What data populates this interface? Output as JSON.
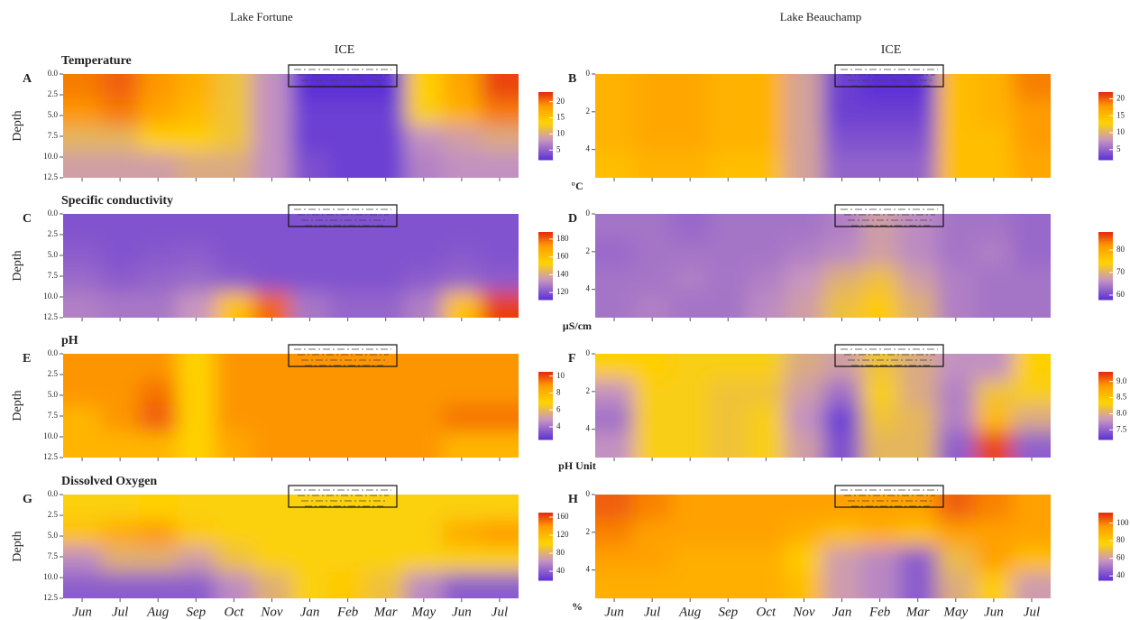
{
  "lakes": [
    "Lake Fortune",
    "Lake Beauchamp"
  ],
  "ice_label": "ICE",
  "y_label": "Depth",
  "months": [
    "Jun",
    "Jul",
    "Aug",
    "Sep",
    "Oct",
    "Nov",
    "Jan",
    "Feb",
    "Mar",
    "May",
    "Jun",
    "Jul"
  ],
  "panels": [
    {
      "letter": "A",
      "title": "Temperature",
      "clim": [
        2,
        23
      ],
      "cticks": [
        5,
        10,
        15,
        20
      ],
      "ylim": [
        0,
        12.5
      ],
      "yticks": [
        {
          "value": 0,
          "label": "0.0"
        },
        2.5,
        {
          "value": 5,
          "label": "5.0"
        },
        7.5,
        {
          "value": 10,
          "label": "10.0"
        },
        12.5
      ],
      "values": [
        [
          20,
          21,
          19,
          17,
          12,
          8,
          2,
          1,
          1,
          14,
          18,
          22
        ],
        [
          19,
          20,
          18,
          16,
          12,
          8,
          3,
          3,
          3,
          13,
          17,
          20
        ],
        [
          11,
          11,
          14,
          14,
          12,
          8,
          3,
          3,
          3,
          8,
          9,
          10
        ],
        [
          9,
          9,
          9,
          10,
          10,
          8,
          4,
          3,
          3,
          7,
          8,
          8
        ]
      ]
    },
    {
      "letter": "B",
      "unit": "°C",
      "clim": [
        2,
        22
      ],
      "cticks": [
        5,
        10,
        15,
        20
      ],
      "ylim": [
        0,
        5.5
      ],
      "yticks": [
        0,
        2,
        4
      ],
      "values": [
        [
          16,
          17,
          17,
          16,
          16,
          9,
          3,
          2,
          2,
          15,
          16,
          19
        ],
        [
          16,
          17,
          17,
          16,
          16,
          9,
          3,
          3,
          3,
          15,
          16,
          18
        ],
        [
          16,
          17,
          17,
          16,
          16,
          9,
          4,
          4,
          4,
          15,
          15,
          18
        ],
        [
          15,
          16,
          16,
          15,
          15,
          9,
          5,
          5,
          5,
          15,
          15,
          17
        ]
      ]
    },
    {
      "letter": "C",
      "title": "Specific conductivity",
      "clim": [
        112,
        188
      ],
      "cticks": [
        120,
        140,
        160,
        180
      ],
      "ylim": [
        0,
        12.5
      ],
      "yticks": [
        {
          "value": 0,
          "label": "0.0"
        },
        2.5,
        {
          "value": 5,
          "label": "5.0"
        },
        7.5,
        {
          "value": 10,
          "label": "10.0"
        },
        12.5
      ],
      "values": [
        [
          120,
          120,
          120,
          120,
          120,
          120,
          120,
          120,
          120,
          120,
          120,
          120
        ],
        [
          122,
          120,
          121,
          122,
          120,
          120,
          120,
          120,
          120,
          120,
          121,
          120
        ],
        [
          125,
          122,
          124,
          125,
          122,
          120,
          120,
          120,
          120,
          122,
          124,
          122
        ],
        [
          130,
          128,
          128,
          135,
          160,
          180,
          128,
          124,
          124,
          130,
          160,
          185
        ]
      ]
    },
    {
      "letter": "D",
      "unit": "μS/cm",
      "clim": [
        58,
        88
      ],
      "cticks": [
        60,
        70,
        80
      ],
      "ylim": [
        0,
        5.5
      ],
      "yticks": [
        0,
        2,
        4
      ],
      "values": [
        [
          64,
          64,
          63,
          64,
          64,
          64,
          65,
          68,
          66,
          64,
          64,
          63
        ],
        [
          63,
          64,
          64,
          64,
          64,
          65,
          66,
          68,
          66,
          64,
          65,
          63
        ],
        [
          64,
          64,
          65,
          64,
          65,
          67,
          70,
          72,
          68,
          65,
          64,
          64
        ],
        [
          64,
          65,
          64,
          64,
          66,
          68,
          72,
          76,
          70,
          65,
          64,
          64
        ]
      ]
    },
    {
      "letter": "E",
      "title": "pH",
      "clim": [
        2.5,
        10.5
      ],
      "cticks": [
        4,
        6,
        8,
        10
      ],
      "ylim": [
        0,
        12.5
      ],
      "yticks": [
        {
          "value": 0,
          "label": "0.0"
        },
        2.5,
        {
          "value": 5,
          "label": "5.0"
        },
        7.5,
        {
          "value": 10,
          "label": "10.0"
        },
        12.5
      ],
      "values": [
        [
          9,
          9,
          9,
          7,
          9,
          9,
          9,
          9,
          9,
          9,
          9,
          9
        ],
        [
          9,
          9,
          9.5,
          7,
          9,
          9,
          9,
          9,
          9,
          9,
          9,
          9
        ],
        [
          8,
          9,
          9.8,
          7,
          9,
          9,
          9,
          9,
          9,
          9,
          9.5,
          9.5
        ],
        [
          8,
          8,
          8,
          7,
          8.5,
          9,
          9,
          9,
          9,
          9,
          8,
          8
        ]
      ]
    },
    {
      "letter": "F",
      "unit": "pH Unit",
      "clim": [
        7.2,
        9.3
      ],
      "cticks": [
        7.5,
        {
          "value": 8,
          "label": "8.0"
        },
        8.5,
        {
          "value": 9,
          "label": "9.0"
        }
      ],
      "ylim": [
        0,
        5.5
      ],
      "yticks": [
        0,
        2,
        4
      ],
      "values": [
        [
          8.4,
          8.4,
          8.3,
          8.3,
          8.3,
          8.0,
          7.9,
          8.2,
          8.0,
          7.8,
          7.8,
          8.4
        ],
        [
          7.8,
          8.3,
          8.3,
          8.2,
          8.2,
          7.9,
          7.6,
          8.3,
          8.0,
          7.7,
          8.2,
          8.3
        ],
        [
          7.6,
          8.3,
          8.3,
          8.2,
          8.3,
          7.8,
          7.3,
          8.2,
          8.1,
          7.7,
          8.6,
          8.0
        ],
        [
          7.8,
          8.3,
          8.3,
          8.2,
          8.3,
          7.9,
          7.4,
          8.1,
          8.1,
          7.5,
          9.2,
          7.5
        ]
      ]
    },
    {
      "letter": "G",
      "title": "Dissolved Oxygen",
      "clim": [
        20,
        170
      ],
      "cticks": [
        40,
        80,
        120,
        160
      ],
      "ylim": [
        0,
        12.5
      ],
      "yticks": [
        {
          "value": 0,
          "label": "0.0"
        },
        2.5,
        {
          "value": 5,
          "label": "5.0"
        },
        7.5,
        {
          "value": 10,
          "label": "10.0"
        },
        12.5
      ],
      "values": [
        [
          100,
          100,
          105,
          100,
          100,
          100,
          100,
          100,
          100,
          100,
          100,
          100
        ],
        [
          115,
          130,
          140,
          110,
          100,
          100,
          100,
          100,
          100,
          100,
          130,
          140
        ],
        [
          60,
          80,
          80,
          70,
          90,
          100,
          100,
          100,
          100,
          100,
          100,
          100
        ],
        [
          40,
          40,
          40,
          40,
          60,
          80,
          100,
          110,
          90,
          60,
          40,
          40
        ]
      ]
    },
    {
      "letter": "H",
      "unit": "%",
      "clim": [
        35,
        112
      ],
      "cticks": [
        40,
        60,
        80,
        100
      ],
      "ylim": [
        0,
        5.5
      ],
      "yticks": [
        0,
        2,
        4
      ],
      "values": [
        [
          105,
          100,
          95,
          95,
          95,
          95,
          95,
          95,
          95,
          105,
          100,
          95
        ],
        [
          100,
          95,
          95,
          95,
          95,
          90,
          85,
          90,
          85,
          95,
          95,
          95
        ],
        [
          95,
          95,
          90,
          90,
          90,
          80,
          60,
          55,
          45,
          70,
          95,
          85
        ],
        [
          90,
          90,
          90,
          90,
          90,
          85,
          60,
          55,
          45,
          65,
          80,
          60
        ]
      ]
    }
  ]
}
